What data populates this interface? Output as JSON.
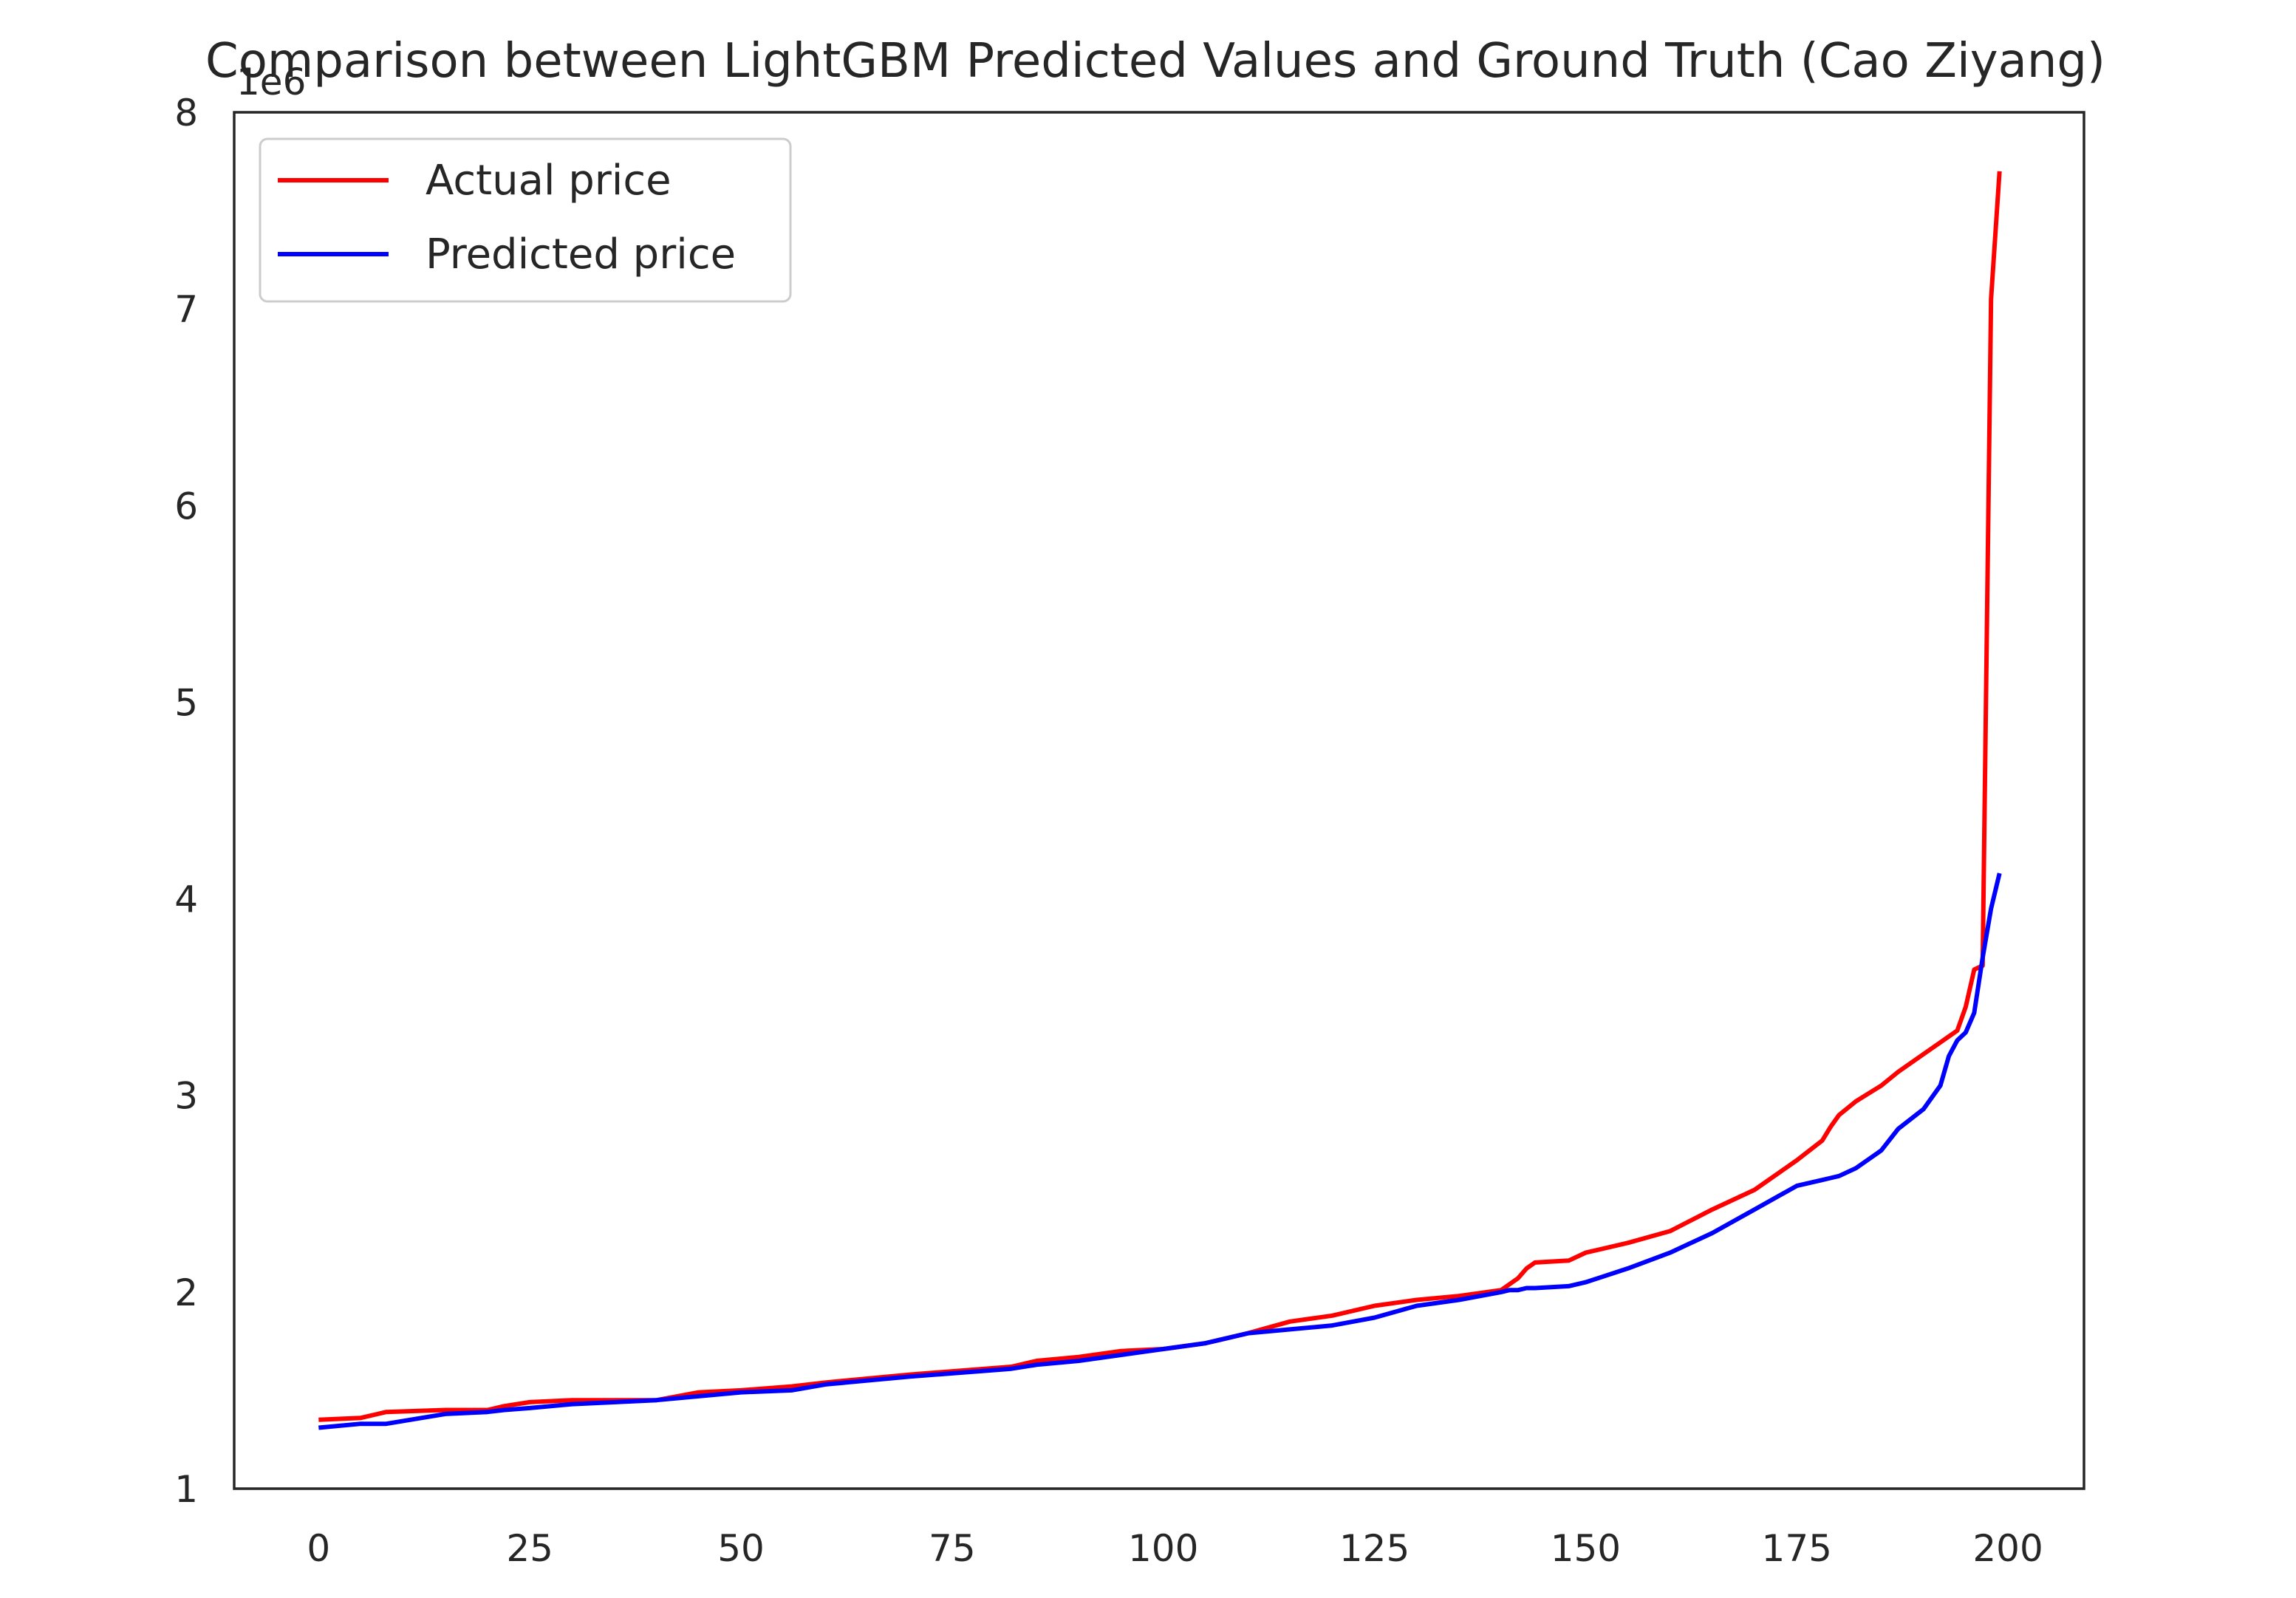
{
  "chart_data": {
    "type": "line",
    "title": "Comparison between LightGBM Predicted Values and Ground Truth (Cao Ziyang)",
    "xlabel": "",
    "ylabel": "",
    "y_offset_label": "1e6",
    "xlim": [
      -10,
      209
    ],
    "ylim": [
      1,
      8
    ],
    "xticks": [
      0,
      25,
      50,
      75,
      100,
      125,
      150,
      175,
      200
    ],
    "yticks": [
      1,
      2,
      3,
      4,
      5,
      6,
      7,
      8
    ],
    "grid": false,
    "legend_position": "upper-left",
    "x_keypoints": [
      0,
      5,
      8,
      15,
      20,
      22,
      25,
      30,
      40,
      45,
      50,
      56,
      60,
      70,
      82,
      85,
      90,
      95,
      100,
      105,
      110,
      115,
      120,
      125,
      130,
      135,
      140,
      141,
      142,
      143,
      144,
      148,
      150,
      155,
      160,
      165,
      170,
      175,
      178,
      179,
      180,
      182,
      185,
      187,
      190,
      192,
      193,
      194,
      195,
      196,
      197,
      198,
      199
    ],
    "series": [
      {
        "name": "Actual price",
        "color": "#ff0000",
        "values": [
          1.35,
          1.36,
          1.39,
          1.4,
          1.4,
          1.42,
          1.44,
          1.45,
          1.45,
          1.49,
          1.5,
          1.52,
          1.54,
          1.58,
          1.62,
          1.65,
          1.67,
          1.7,
          1.71,
          1.74,
          1.79,
          1.85,
          1.88,
          1.93,
          1.96,
          1.98,
          2.01,
          2.04,
          2.07,
          2.12,
          2.15,
          2.16,
          2.2,
          2.25,
          2.31,
          2.42,
          2.52,
          2.67,
          2.77,
          2.84,
          2.9,
          2.97,
          3.05,
          3.12,
          3.21,
          3.27,
          3.3,
          3.33,
          3.45,
          3.64,
          3.66,
          7.05,
          7.7
        ]
      },
      {
        "name": "Predicted price",
        "color": "#0000ff",
        "values": [
          1.31,
          1.33,
          1.33,
          1.38,
          1.39,
          1.4,
          1.41,
          1.43,
          1.45,
          1.47,
          1.49,
          1.5,
          1.53,
          1.57,
          1.61,
          1.63,
          1.65,
          1.68,
          1.71,
          1.74,
          1.79,
          1.81,
          1.83,
          1.87,
          1.93,
          1.96,
          2.0,
          2.01,
          2.01,
          2.02,
          2.02,
          2.03,
          2.05,
          2.12,
          2.2,
          2.3,
          2.42,
          2.54,
          2.57,
          2.58,
          2.59,
          2.63,
          2.72,
          2.83,
          2.93,
          3.05,
          3.2,
          3.28,
          3.32,
          3.42,
          3.7,
          3.95,
          4.13
        ]
      }
    ]
  }
}
